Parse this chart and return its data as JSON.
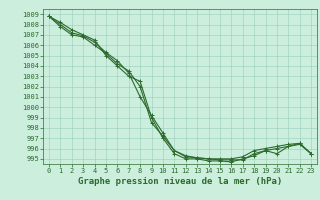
{
  "title": "Graphe pression niveau de la mer (hPa)",
  "background_color": "#cceedd",
  "grid_color": "#99ccbb",
  "line_color": "#2d6a2d",
  "marker_color": "#2d6a2d",
  "xlim": [
    -0.5,
    23.5
  ],
  "ylim": [
    994.5,
    1009.5
  ],
  "xticks": [
    0,
    1,
    2,
    3,
    4,
    5,
    6,
    7,
    8,
    9,
    10,
    11,
    12,
    13,
    14,
    15,
    16,
    17,
    18,
    19,
    20,
    21,
    22,
    23
  ],
  "yticks": [
    995,
    996,
    997,
    998,
    999,
    1000,
    1001,
    1002,
    1003,
    1004,
    1005,
    1006,
    1007,
    1008,
    1009
  ],
  "series": [
    [
      1008.8,
      1008.2,
      1007.5,
      1007.0,
      1006.5,
      1005.0,
      1004.0,
      1003.0,
      1002.5,
      999.0,
      997.0,
      995.5,
      995.0,
      995.0,
      994.8,
      994.8,
      994.7,
      995.0,
      995.3,
      995.8,
      996.0,
      996.2,
      996.5,
      995.5
    ],
    [
      1008.8,
      1007.8,
      1007.0,
      1006.8,
      1006.0,
      1005.2,
      1004.2,
      1003.5,
      1002.0,
      998.5,
      997.2,
      995.8,
      995.2,
      995.1,
      995.0,
      995.0,
      995.0,
      995.2,
      995.8,
      996.0,
      996.2,
      996.4,
      996.5,
      995.5
    ],
    [
      1008.8,
      1008.0,
      1007.2,
      1006.9,
      1006.3,
      1005.3,
      1004.5,
      1003.3,
      1001.0,
      999.2,
      997.5,
      995.8,
      995.3,
      995.1,
      995.0,
      994.9,
      994.9,
      994.9,
      995.5,
      995.8,
      995.5,
      996.2,
      996.4,
      995.5
    ]
  ],
  "tick_fontsize": 5.0,
  "title_fontsize": 6.5,
  "linewidth": 0.8,
  "markersize": 2.5,
  "markeredgewidth": 0.7
}
